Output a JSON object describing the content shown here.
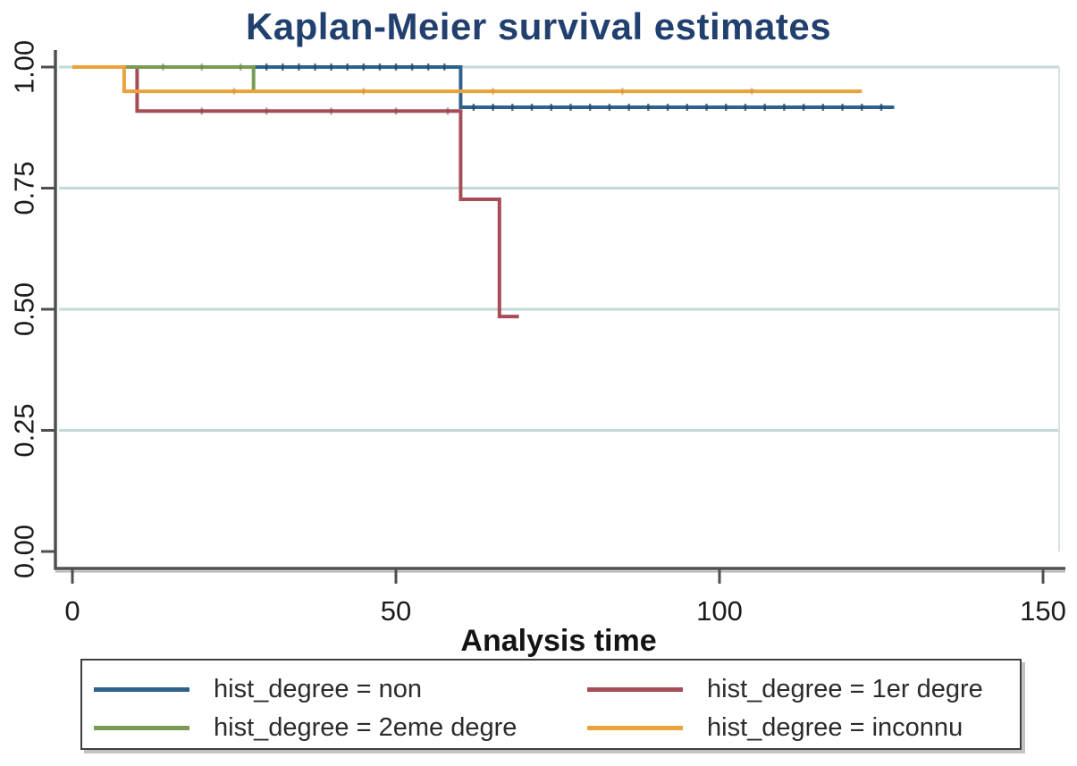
{
  "chart_data": {
    "type": "line",
    "variant": "kaplan-meier-step",
    "title": "Kaplan-Meier survival estimates",
    "xlabel": "Analysis time",
    "ylabel": "",
    "axes": {
      "xlim": [
        0,
        153
      ],
      "ylim": [
        0,
        1.0
      ],
      "grid_on": true,
      "legend_position": "bottom",
      "xticks": [
        {
          "v": 0,
          "label": "0"
        },
        {
          "v": 50,
          "label": "50"
        },
        {
          "v": 100,
          "label": "100"
        },
        {
          "v": 150,
          "label": "150"
        }
      ],
      "yticks": [
        {
          "v": 0,
          "label": "0.00"
        },
        {
          "v": 0.25,
          "label": "0.25"
        },
        {
          "v": 0.5,
          "label": "0.50"
        },
        {
          "v": 0.75,
          "label": "0.75"
        },
        {
          "v": 1,
          "label": "1.00"
        }
      ],
      "grid_values": [
        0.25,
        0.5,
        0.75,
        1.0
      ]
    },
    "colors": {
      "grid": "#c3d8da",
      "plot_border": "#d7e3e3",
      "axis": "#4f4f4f",
      "axis_shadow": "#b5b5b5",
      "title": "#21406e",
      "text": "#1b1b1b"
    },
    "series": [
      {
        "key": "non",
        "name": "hist_degree = non",
        "color": "#2e618c",
        "tick_color": "#1c3f63",
        "tick_opacity": 0.7,
        "points": [
          [
            0,
            1
          ],
          [
            60,
            1
          ],
          [
            60,
            0.917
          ],
          [
            127,
            0.917
          ]
        ],
        "censor_times": [
          30,
          32.5,
          35,
          37.5,
          40,
          42.5,
          45,
          47.5,
          50,
          52.5,
          55,
          57.5,
          62,
          65,
          68,
          71,
          74,
          77,
          80,
          83,
          86,
          89,
          92,
          95,
          98,
          101,
          104,
          107,
          110,
          113,
          116,
          119,
          122,
          125
        ]
      },
      {
        "key": "1er-degre",
        "name": "hist_degree = 1er degre",
        "color": "#a64d58",
        "tick_color": "#8a3945",
        "tick_opacity": 0.5,
        "points": [
          [
            0,
            1
          ],
          [
            10,
            1
          ],
          [
            10,
            0.909
          ],
          [
            60,
            0.909
          ],
          [
            60,
            0.727
          ],
          [
            66,
            0.727
          ],
          [
            66,
            0.485
          ],
          [
            69,
            0.485
          ]
        ],
        "censor_times": [
          20,
          30,
          40,
          50,
          58
        ]
      },
      {
        "key": "2eme-degre",
        "name": "hist_degree = 2eme degre",
        "color": "#7a9b55",
        "tick_color": "#5f7e3d",
        "tick_opacity": 0.5,
        "points": [
          [
            0,
            1
          ],
          [
            28,
            1
          ],
          [
            28,
            0.95
          ]
        ],
        "censor_times": [
          14,
          20,
          26
        ]
      },
      {
        "key": "inconnu",
        "name": "hist_degree = inconnu",
        "color": "#eaa33c",
        "tick_color": "#c9862a",
        "tick_opacity": 0.45,
        "points": [
          [
            0,
            1
          ],
          [
            8,
            1
          ],
          [
            8,
            0.95
          ],
          [
            122,
            0.95
          ]
        ],
        "censor_times": [
          25,
          45,
          65,
          85,
          105
        ]
      }
    ]
  }
}
